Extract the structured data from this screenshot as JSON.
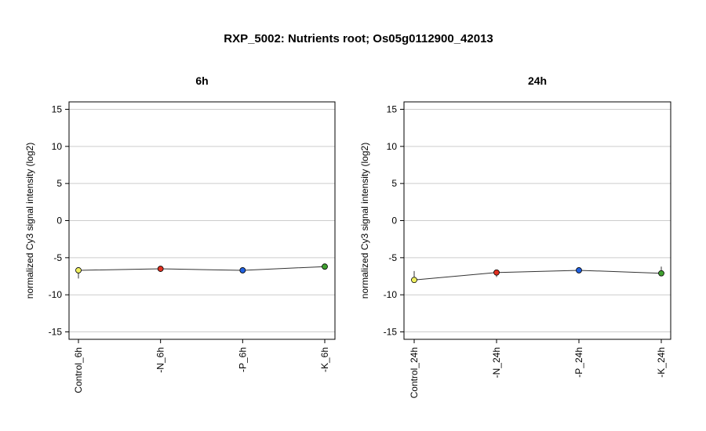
{
  "title": "RXP_5002: Nutrients root; Os05g0112900_42013",
  "chart_data": [
    {
      "type": "line",
      "title": "6h",
      "ylabel": "normalized Cy3 signal intensity (log2)",
      "ylim": [
        -16,
        16
      ],
      "yticks": [
        -15,
        -10,
        -5,
        0,
        5,
        10,
        15
      ],
      "grid": true,
      "categories": [
        "Control_6h",
        "-N_6h",
        "-P_6h",
        "-K_6h"
      ],
      "values": [
        -6.7,
        -6.5,
        -6.7,
        -6.2
      ],
      "error_low": [
        -7.8,
        -6.7,
        -6.9,
        -6.4
      ],
      "error_high": [
        -6.5,
        -6.3,
        -6.5,
        -6.0
      ],
      "colors": [
        "#f0f060",
        "#e03020",
        "#2060e0",
        "#40a030"
      ]
    },
    {
      "type": "line",
      "title": "24h",
      "ylabel": "normalized Cy3 signal intensity (log2)",
      "ylim": [
        -16,
        16
      ],
      "yticks": [
        -15,
        -10,
        -5,
        0,
        5,
        10,
        15
      ],
      "grid": true,
      "categories": [
        "Control_24h",
        "-N_24h",
        "-P_24h",
        "-K_24h"
      ],
      "values": [
        -8.0,
        -7.0,
        -6.7,
        -7.1
      ],
      "error_low": [
        -8.2,
        -7.6,
        -6.9,
        -7.3
      ],
      "error_high": [
        -6.8,
        -6.8,
        -6.5,
        -6.2
      ],
      "colors": [
        "#f0f060",
        "#e03020",
        "#2060e0",
        "#40a030"
      ]
    }
  ]
}
